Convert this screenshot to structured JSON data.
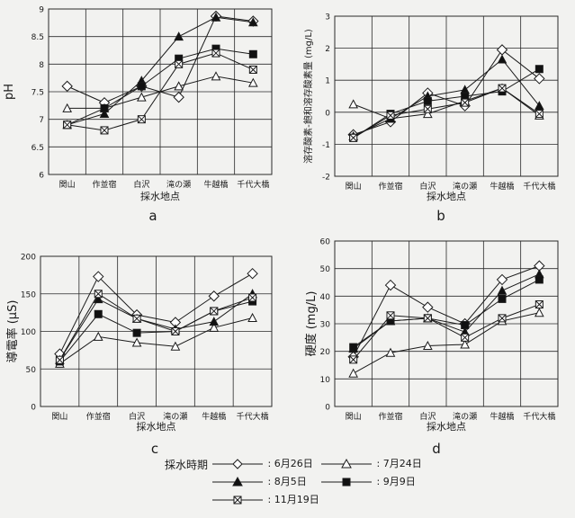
{
  "chart_data": [
    {
      "id": "a",
      "type": "line",
      "panel_label": "a",
      "ylabel": "pH",
      "xlabel": "採水地点",
      "categories": [
        "関山",
        "作並宿",
        "白沢",
        "滝の瀬",
        "牛越橋",
        "千代大橋"
      ],
      "ylim": [
        6,
        9
      ],
      "yticks": [
        "6",
        "6.5",
        "7",
        "7.5",
        "8",
        "8.5",
        "9"
      ],
      "ytick_values": [
        6,
        6.5,
        7,
        7.5,
        8,
        8.5,
        9
      ],
      "grid": true,
      "series": [
        {
          "key": "jun26",
          "values": [
            7.6,
            7.3,
            7.6,
            7.4,
            8.87,
            8.78
          ]
        },
        {
          "key": "jul24",
          "values": [
            7.2,
            7.2,
            7.4,
            7.6,
            7.78,
            7.66
          ]
        },
        {
          "key": "aug5",
          "values": [
            6.9,
            7.1,
            7.7,
            8.5,
            8.85,
            8.76
          ]
        },
        {
          "key": "sep9",
          "values": [
            6.9,
            7.2,
            7.6,
            8.1,
            8.28,
            8.18
          ]
        },
        {
          "key": "nov19",
          "values": [
            6.9,
            6.8,
            7.0,
            8.0,
            8.2,
            7.9
          ]
        }
      ]
    },
    {
      "id": "b",
      "type": "line",
      "panel_label": "b",
      "ylabel": "溶存酸素-飽和溶存酸素量 (mg/L)",
      "xlabel": "採水地点",
      "categories": [
        "関山",
        "作並宿",
        "白沢",
        "滝の瀬",
        "牛越橋",
        "千代大橋"
      ],
      "ylim": [
        -2,
        3
      ],
      "yticks": [
        "-2",
        "-1",
        "0",
        "1",
        "2",
        "3"
      ],
      "ytick_values": [
        -2,
        -1,
        0,
        1,
        2,
        3
      ],
      "grid": true,
      "series": [
        {
          "key": "jun26",
          "values": [
            -0.7,
            -0.3,
            0.6,
            0.2,
            1.95,
            1.05
          ]
        },
        {
          "key": "jul24",
          "values": [
            0.25,
            -0.2,
            -0.05,
            0.35,
            0.75,
            -0.1
          ]
        },
        {
          "key": "aug5",
          "values": [
            -0.75,
            -0.2,
            0.5,
            0.7,
            1.65,
            0.2
          ]
        },
        {
          "key": "sep9",
          "values": [
            -0.8,
            -0.05,
            0.35,
            0.5,
            0.65,
            1.35
          ]
        },
        {
          "key": "nov19",
          "values": [
            -0.8,
            -0.1,
            0.1,
            0.3,
            0.75,
            -0.05
          ]
        }
      ]
    },
    {
      "id": "c",
      "type": "line",
      "panel_label": "c",
      "ylabel": "導電率 (μS)",
      "xlabel": "採水地点",
      "categories": [
        "関山",
        "作並宿",
        "白沢",
        "滝の瀬",
        "牛越橋",
        "千代大橋"
      ],
      "ylim": [
        0,
        200
      ],
      "yticks": [
        "0",
        "50",
        "100",
        "150",
        "200"
      ],
      "ytick_values": [
        0,
        50,
        100,
        150,
        200
      ],
      "grid": true,
      "series": [
        {
          "key": "jun26",
          "values": [
            70,
            173,
            122,
            112,
            147,
            177
          ]
        },
        {
          "key": "jul24",
          "values": [
            57,
            93,
            85,
            80,
            105,
            118
          ]
        },
        {
          "key": "aug5",
          "values": [
            62,
            143,
            117,
            103,
            113,
            150
          ]
        },
        {
          "key": "sep9",
          "values": [
            60,
            123,
            98,
            100,
            127,
            140
          ]
        },
        {
          "key": "nov19",
          "values": [
            62,
            150,
            117,
            100,
            127,
            145
          ]
        }
      ]
    },
    {
      "id": "d",
      "type": "line",
      "panel_label": "d",
      "ylabel": "硬度 (mg/L)",
      "xlabel": "採水地点",
      "categories": [
        "関山",
        "作並宿",
        "白沢",
        "滝の瀬",
        "牛越橋",
        "千代大橋"
      ],
      "ylim": [
        0,
        60
      ],
      "yticks": [
        "0",
        "10",
        "20",
        "30",
        "40",
        "50",
        "60"
      ],
      "ytick_values": [
        0,
        10,
        20,
        30,
        40,
        50,
        60
      ],
      "grid": true,
      "series": [
        {
          "key": "jun26",
          "values": [
            18,
            44,
            36,
            30,
            46,
            51
          ]
        },
        {
          "key": "jul24",
          "values": [
            12,
            19.5,
            22,
            22.5,
            31,
            34
          ]
        },
        {
          "key": "aug5",
          "values": [
            21,
            31,
            32,
            27,
            42,
            48
          ]
        },
        {
          "key": "sep9",
          "values": [
            21.5,
            31,
            32,
            29.5,
            39,
            46
          ]
        },
        {
          "key": "nov19",
          "values": [
            17,
            33,
            32,
            25,
            32,
            37
          ]
        }
      ]
    }
  ],
  "legend": {
    "title": "採水時期",
    "items": [
      {
        "key": "jun26",
        "label": ": 6月26日",
        "marker": "diamond-open"
      },
      {
        "key": "jul24",
        "label": ": 7月24日",
        "marker": "triangle-open"
      },
      {
        "key": "aug5",
        "label": ": 8月5日",
        "marker": "triangle-filled"
      },
      {
        "key": "sep9",
        "label": ": 9月9日",
        "marker": "square-filled"
      },
      {
        "key": "nov19",
        "label": ": 11月19日",
        "marker": "square-crossed"
      }
    ]
  },
  "colors": {
    "line": "#1a1a1a",
    "grid": "#2a2a2a",
    "marker_fill_open": "#ffffff",
    "marker_fill_solid": "#111111",
    "background": "#f2f2f0"
  }
}
